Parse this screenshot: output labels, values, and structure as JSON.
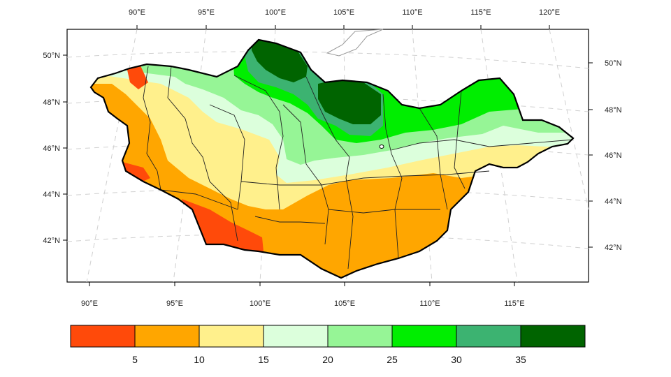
{
  "map": {
    "region": "Mongolia",
    "top_longitude_labels": [
      "90°E",
      "95°E",
      "100°E",
      "105°E",
      "110°E",
      "115°E",
      "120°E"
    ],
    "bottom_longitude_labels": [
      "90°E",
      "95°E",
      "100°E",
      "105°E",
      "110°E",
      "115°E"
    ],
    "left_latitude_labels": [
      "50°N",
      "48°N",
      "46°N",
      "44°N",
      "42°N"
    ],
    "right_latitude_labels": [
      "50°N",
      "48°N",
      "46°N",
      "44°N",
      "42°N"
    ],
    "graticule": "dashed",
    "colors": {
      "water": "#ffffff",
      "border": "#000000",
      "province_lines": "#222222"
    }
  },
  "colorbar": {
    "tick_labels": [
      "5",
      "10",
      "15",
      "20",
      "25",
      "30",
      "35"
    ],
    "bins": [
      {
        "range": "<5",
        "color": "#ff4a0a"
      },
      {
        "range": "5-10",
        "color": "#ffa600"
      },
      {
        "range": "10-15",
        "color": "#fff08c"
      },
      {
        "range": "15-20",
        "color": "#dcffdc"
      },
      {
        "range": "20-25",
        "color": "#96f596"
      },
      {
        "range": "25-30",
        "color": "#00ee00"
      },
      {
        "range": "30-35",
        "color": "#3cb371"
      },
      {
        "range": ">35",
        "color": "#006400"
      }
    ]
  }
}
